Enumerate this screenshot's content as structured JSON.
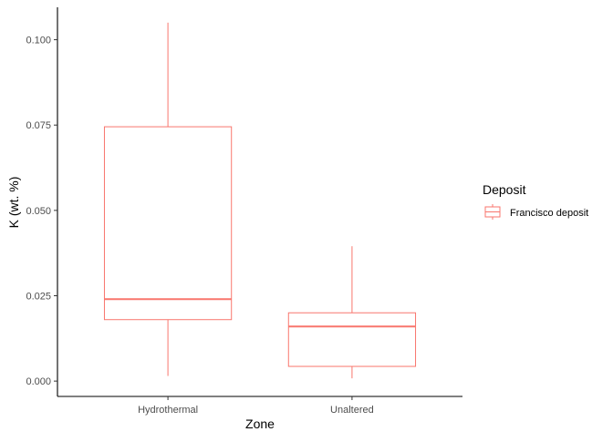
{
  "chart_data": {
    "type": "box",
    "xlabel": "Zone",
    "ylabel": "K (wt. %)",
    "categories": [
      "Hydrothermal",
      "Unaltered"
    ],
    "series": [
      {
        "name": "Francisco deposit",
        "color": "#F8766D",
        "boxes": [
          {
            "category": "Hydrothermal",
            "lower_whisker": 0.0015,
            "q1": 0.018,
            "median": 0.024,
            "q3": 0.0745,
            "upper_whisker": 0.105
          },
          {
            "category": "Unaltered",
            "lower_whisker": 0.0008,
            "q1": 0.0043,
            "median": 0.016,
            "q3": 0.02,
            "upper_whisker": 0.0395
          }
        ]
      }
    ],
    "yticks": [
      0.0,
      0.025,
      0.05,
      0.075,
      0.1
    ],
    "ytick_labels": [
      "0.000",
      "0.025",
      "0.050",
      "0.075",
      "0.100"
    ],
    "ylim": [
      -0.0045,
      0.1095
    ],
    "grid": false,
    "legend": {
      "title": "Deposit",
      "position": "right"
    }
  }
}
